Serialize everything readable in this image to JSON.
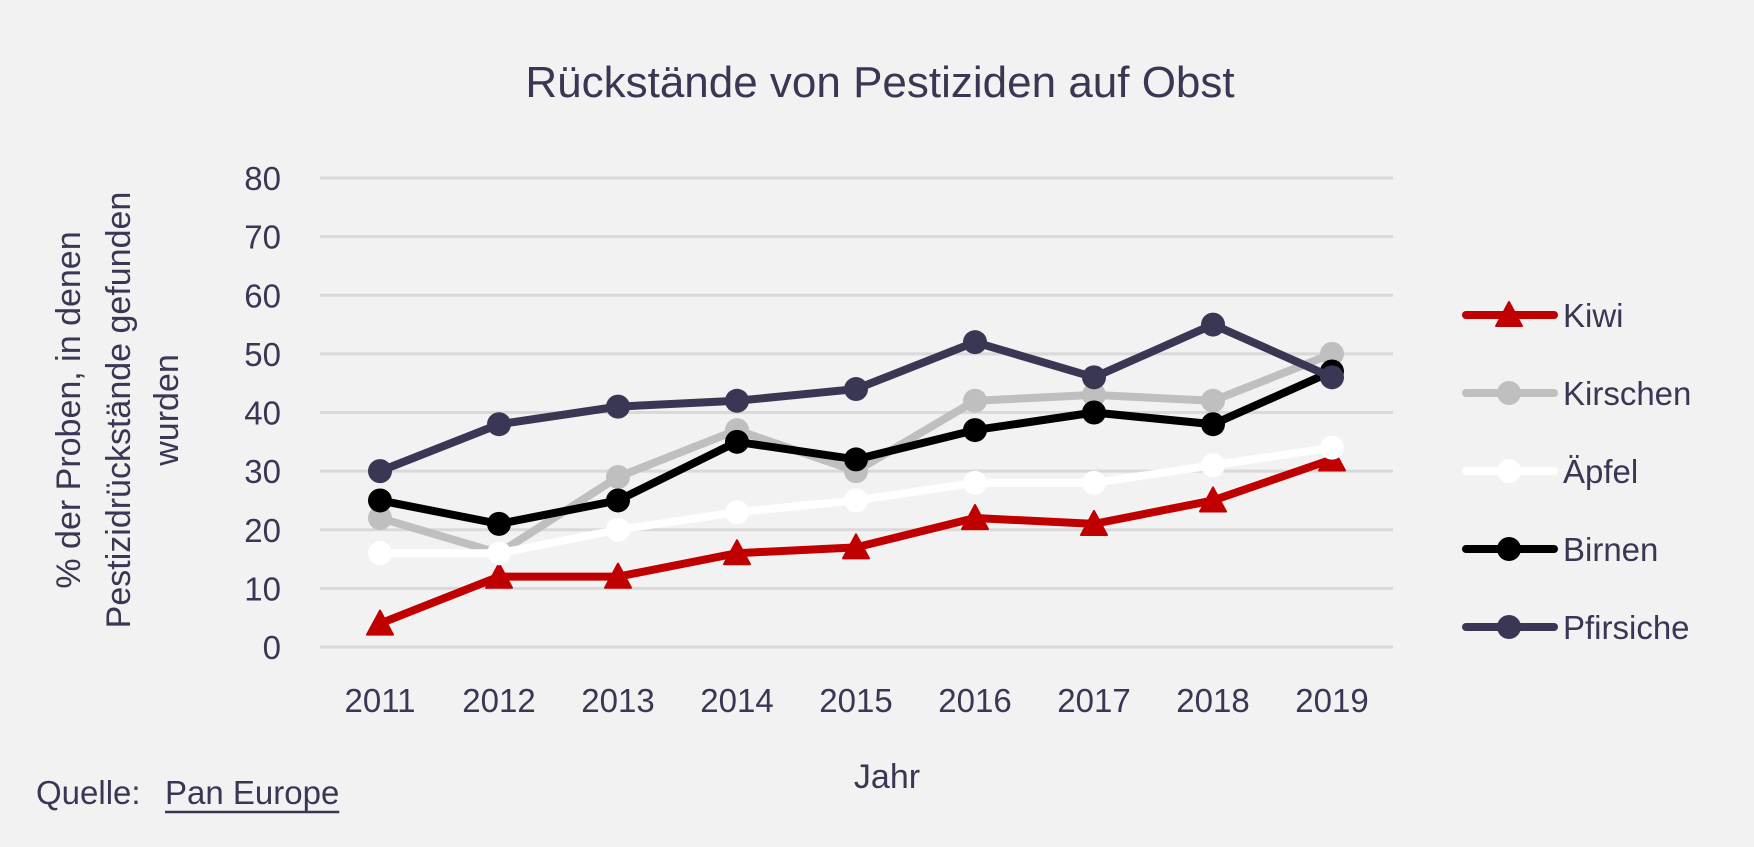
{
  "chart_data": {
    "type": "line",
    "title": "Rückstände von Pestiziden auf Obst",
    "xlabel": "Jahr",
    "ylabel_lines": [
      "% der Proben, in denen",
      "Pestizidrückstände gefunden",
      "wurden"
    ],
    "ylabel": "% der Proben, in denen Pestizidrückstände gefunden wurden",
    "x": [
      "2011",
      "2012",
      "2013",
      "2014",
      "2015",
      "2016",
      "2017",
      "2018",
      "2019"
    ],
    "ylim": [
      0,
      80
    ],
    "yticks": [
      0,
      10,
      20,
      30,
      40,
      50,
      60,
      70,
      80
    ],
    "grid": true,
    "legend_position": "right",
    "series": [
      {
        "name": "Kiwi",
        "color": "#c00000",
        "marker": "triangle",
        "values": [
          4,
          12,
          12,
          16,
          17,
          22,
          21,
          25,
          32
        ]
      },
      {
        "name": "Kirschen",
        "color": "#bfbfbf",
        "marker": "circle",
        "values": [
          22,
          16,
          29,
          37,
          30,
          42,
          43,
          42,
          50
        ]
      },
      {
        "name": "Äpfel",
        "color": "#ffffff",
        "marker": "circle",
        "values": [
          16,
          16,
          20,
          23,
          25,
          28,
          28,
          31,
          34
        ]
      },
      {
        "name": "Birnen",
        "color": "#000000",
        "marker": "circle",
        "values": [
          25,
          21,
          25,
          35,
          32,
          37,
          40,
          38,
          47
        ]
      },
      {
        "name": "Pfirsiche",
        "color": "#393754",
        "marker": "circle",
        "values": [
          30,
          38,
          41,
          42,
          44,
          52,
          46,
          55,
          46
        ]
      }
    ]
  },
  "source": {
    "label": "Quelle:",
    "link_text": "Pan Europe"
  }
}
